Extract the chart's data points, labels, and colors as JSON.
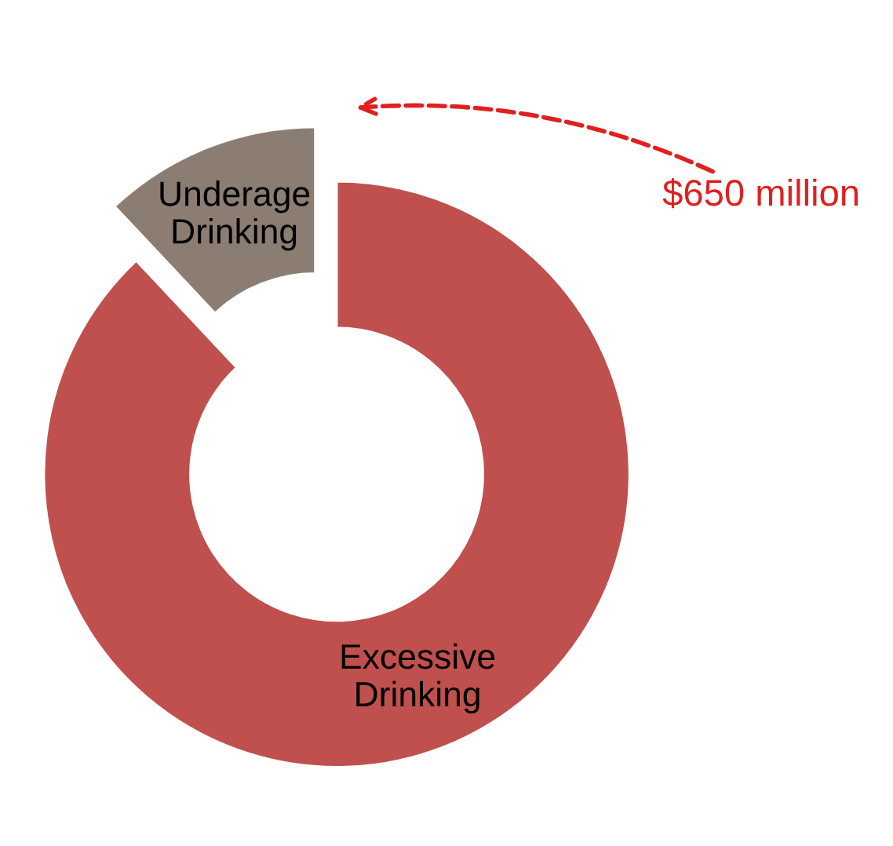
{
  "chart_data": {
    "type": "donut",
    "categories": [
      "Underage Drinking",
      "Excessive Drinking"
    ],
    "values": [
      12,
      88
    ],
    "colors": [
      "#8c7d73",
      "#c0504d"
    ],
    "annotations": [
      "$650 million"
    ]
  }
}
